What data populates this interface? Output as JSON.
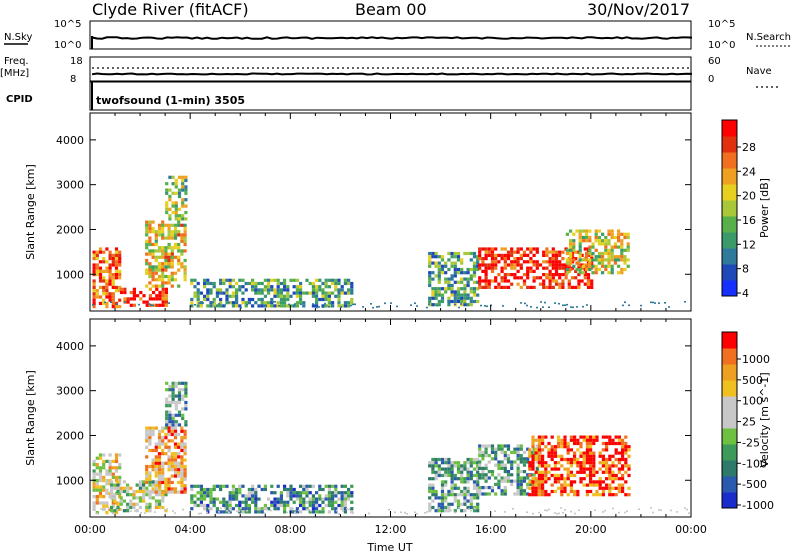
{
  "header": {
    "station": "Clyde River (fitACF)",
    "beam": "Beam 00",
    "date": "30/Nov/2017"
  },
  "top_panels": {
    "nsky_label": "N.Sky",
    "freq_label_1": "Freq.",
    "freq_label_2": "[MHz]",
    "cpid_label": "CPID",
    "nsky_ticks": [
      "10^5",
      "10^0"
    ],
    "freq_ticks": [
      "18",
      "8"
    ],
    "nsearch_ticks": [
      "10^5",
      "10^0"
    ],
    "nave_ticks": [
      "60",
      "0"
    ],
    "nsearch_label": "N.Search",
    "nave_label": "Nave",
    "cpid_text": "twofsound (1-min) 3505"
  },
  "chart_data": [
    {
      "type": "heatmap",
      "title": "",
      "xlabel": "",
      "ylabel": "Slant Range [km]",
      "xlim_hours": [
        0,
        24
      ],
      "ylim_km": [
        180,
        4600
      ],
      "y_ticks": [
        "4000",
        "3000",
        "2000",
        "1000"
      ],
      "y_tick_values": [
        4000,
        3000,
        2000,
        1000
      ],
      "colorbar": {
        "label": "Power [dB]",
        "ticks": [
          "28",
          "24",
          "20",
          "16",
          "12",
          "8",
          "4"
        ],
        "range": [
          0,
          32
        ],
        "colors": [
          "#1530ff",
          "#1f49b8",
          "#2f7a9a",
          "#3b9a6a",
          "#58b04a",
          "#a8c83a",
          "#e8d020",
          "#f0a020",
          "#f07020",
          "#e03010",
          "#ff0000"
        ]
      },
      "regions": [
        {
          "t": [
            0.1,
            1.2
          ],
          "r": [
            300,
            1600
          ],
          "level": 0.8
        },
        {
          "t": [
            1.2,
            3.0
          ],
          "r": [
            300,
            700
          ],
          "level": 0.9
        },
        {
          "t": [
            2.2,
            3.8
          ],
          "r": [
            700,
            2200
          ],
          "level": 0.6
        },
        {
          "t": [
            3.0,
            3.8
          ],
          "r": [
            2200,
            3200
          ],
          "level": 0.45
        },
        {
          "t": [
            4.0,
            10.5
          ],
          "r": [
            300,
            900
          ],
          "level": 0.35
        },
        {
          "t": [
            13.5,
            15.5
          ],
          "r": [
            300,
            1500
          ],
          "level": 0.35
        },
        {
          "t": [
            15.5,
            20.0
          ],
          "r": [
            700,
            1600
          ],
          "level": 0.9
        },
        {
          "t": [
            19.0,
            21.5
          ],
          "r": [
            1000,
            2000
          ],
          "level": 0.55
        }
      ]
    },
    {
      "type": "heatmap",
      "title": "",
      "xlabel": "Time UT",
      "ylabel": "Slant Range [km]",
      "xlim_hours": [
        0,
        24
      ],
      "ylim_km": [
        180,
        4600
      ],
      "x_ticks": [
        "00:00",
        "04:00",
        "08:00",
        "12:00",
        "16:00",
        "20:00",
        "00:00"
      ],
      "x_tick_hours": [
        0,
        4,
        8,
        12,
        16,
        20,
        24
      ],
      "y_ticks": [
        "4000",
        "3000",
        "2000",
        "1000"
      ],
      "y_tick_values": [
        4000,
        3000,
        2000,
        1000
      ],
      "colorbar": {
        "label": "Velocity [m s^-1]",
        "ticks": [
          "1000",
          "500",
          "100",
          "25",
          "-25",
          "-100",
          "-500",
          "-1000"
        ],
        "colors": [
          "#1a2ccc",
          "#2a5ab0",
          "#2d7a6a",
          "#3d9a5a",
          "#6ec040",
          "#c8c8c8",
          "#c8c8c8",
          "#f0c020",
          "#f0a020",
          "#f07020",
          "#ff0000"
        ]
      },
      "regions": [
        {
          "t": [
            0.1,
            1.2
          ],
          "r": [
            300,
            1600
          ],
          "level": 0.6
        },
        {
          "t": [
            0.8,
            3.0
          ],
          "r": [
            300,
            1000
          ],
          "level": 0.5
        },
        {
          "t": [
            2.2,
            3.8
          ],
          "r": [
            700,
            2200
          ],
          "level": 0.7
        },
        {
          "t": [
            3.0,
            3.8
          ],
          "r": [
            2200,
            3200
          ],
          "level": 0.35
        },
        {
          "t": [
            4.0,
            10.5
          ],
          "r": [
            300,
            900
          ],
          "level": 0.3
        },
        {
          "t": [
            13.5,
            15.5
          ],
          "r": [
            300,
            1500
          ],
          "level": 0.35
        },
        {
          "t": [
            15.5,
            18.0
          ],
          "r": [
            700,
            1800
          ],
          "level": 0.35
        },
        {
          "t": [
            17.5,
            21.5
          ],
          "r": [
            700,
            2000
          ],
          "level": 0.9
        }
      ]
    }
  ]
}
